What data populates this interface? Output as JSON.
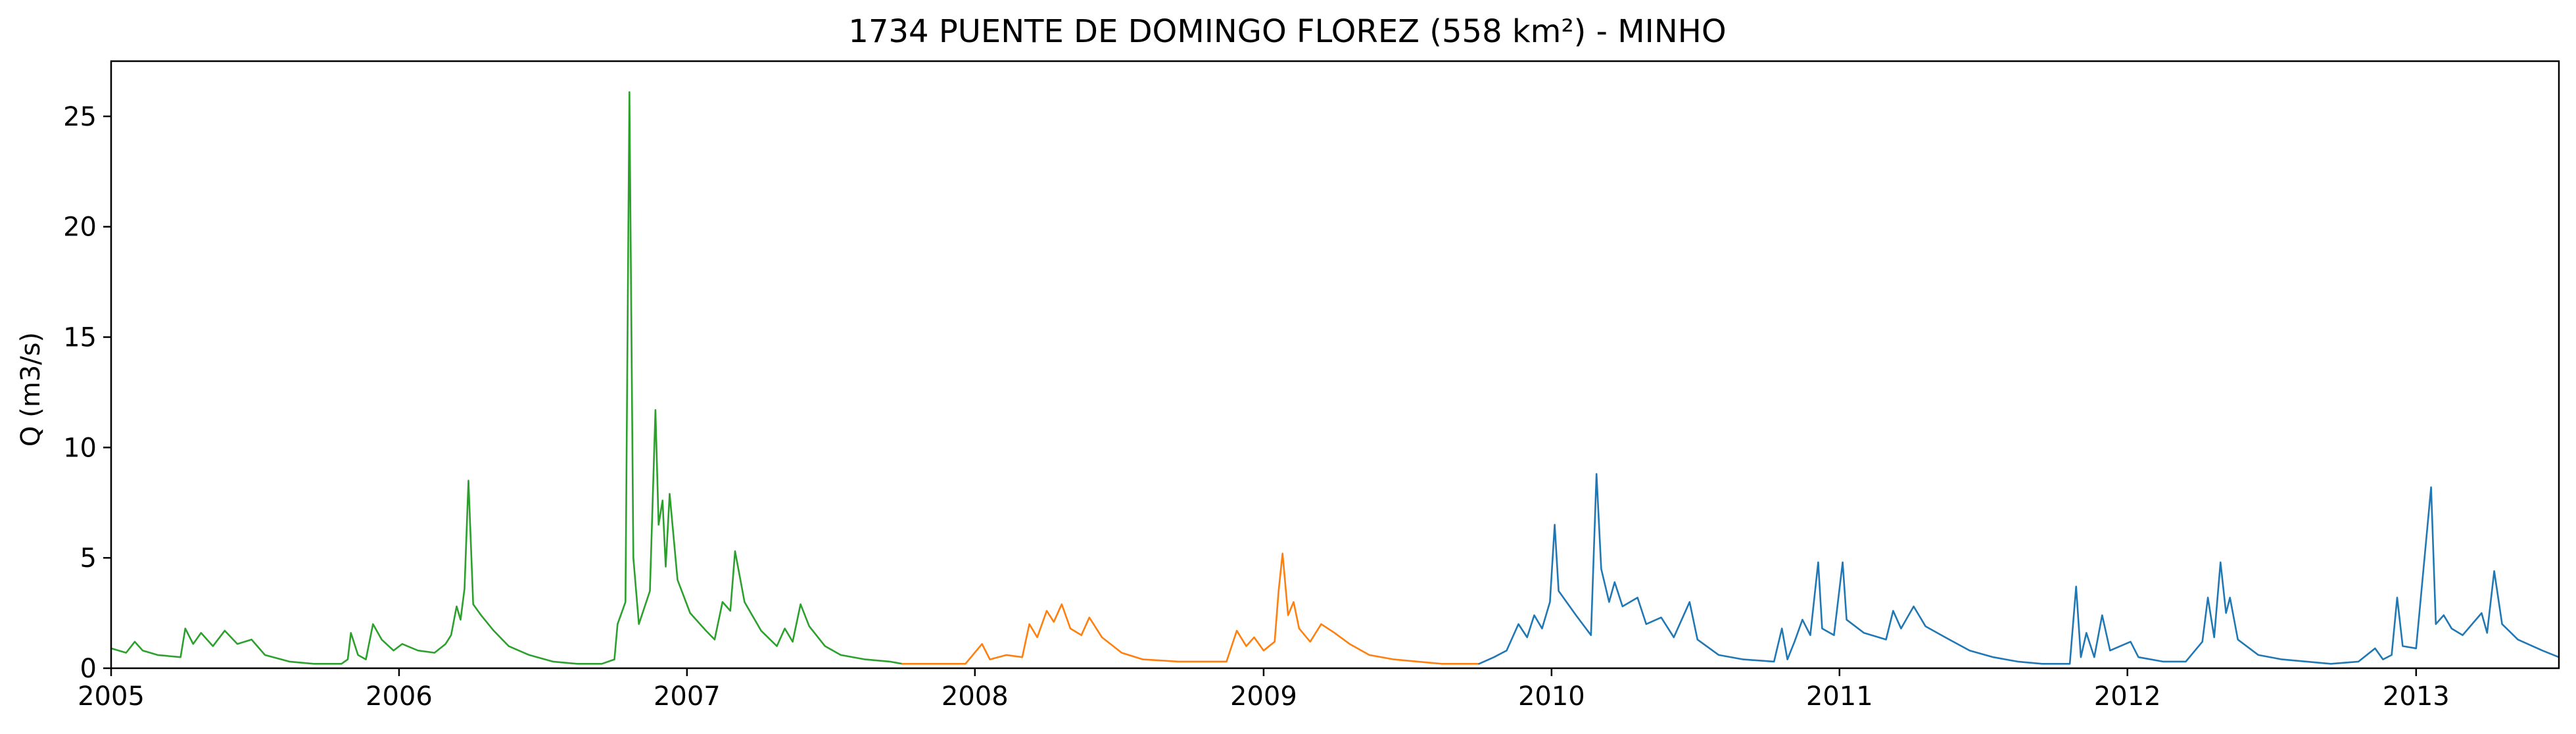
{
  "chart_data": {
    "type": "line",
    "title": "1734 PUENTE DE DOMINGO FLOREZ (558 km²) - MINHO",
    "xlabel": "",
    "ylabel": "Q (m3/s)",
    "xlim": [
      "2005-01-01",
      "2013-07-01"
    ],
    "ylim": [
      0,
      27.5
    ],
    "xticks": [
      "2005",
      "2006",
      "2007",
      "2008",
      "2009",
      "2010",
      "2011",
      "2012",
      "2013"
    ],
    "yticks": [
      0,
      5,
      10,
      15,
      20,
      25
    ],
    "grid": false,
    "legend": "none",
    "series": [
      {
        "color": "#2ca02c",
        "points": [
          [
            "2005-01-01",
            0.9
          ],
          [
            "2005-01-20",
            0.7
          ],
          [
            "2005-01-31",
            1.2
          ],
          [
            "2005-02-10",
            0.8
          ],
          [
            "2005-03-01",
            0.6
          ],
          [
            "2005-03-30",
            0.5
          ],
          [
            "2005-04-05",
            1.8
          ],
          [
            "2005-04-15",
            1.1
          ],
          [
            "2005-04-25",
            1.6
          ],
          [
            "2005-05-10",
            1.0
          ],
          [
            "2005-05-25",
            1.7
          ],
          [
            "2005-06-10",
            1.1
          ],
          [
            "2005-06-28",
            1.3
          ],
          [
            "2005-07-15",
            0.6
          ],
          [
            "2005-08-15",
            0.3
          ],
          [
            "2005-09-15",
            0.2
          ],
          [
            "2005-10-20",
            0.2
          ],
          [
            "2005-10-28",
            0.4
          ],
          [
            "2005-11-01",
            1.6
          ],
          [
            "2005-11-10",
            0.6
          ],
          [
            "2005-11-20",
            0.4
          ],
          [
            "2005-11-29",
            2.0
          ],
          [
            "2005-12-10",
            1.3
          ],
          [
            "2005-12-25",
            0.8
          ],
          [
            "2006-01-05",
            1.1
          ],
          [
            "2006-01-25",
            0.8
          ],
          [
            "2006-02-15",
            0.7
          ],
          [
            "2006-03-01",
            1.1
          ],
          [
            "2006-03-08",
            1.5
          ],
          [
            "2006-03-15",
            2.8
          ],
          [
            "2006-03-20",
            2.2
          ],
          [
            "2006-03-25",
            3.6
          ],
          [
            "2006-03-30",
            8.5
          ],
          [
            "2006-04-05",
            2.9
          ],
          [
            "2006-04-15",
            2.4
          ],
          [
            "2006-05-01",
            1.7
          ],
          [
            "2006-05-20",
            1.0
          ],
          [
            "2006-06-15",
            0.6
          ],
          [
            "2006-07-15",
            0.3
          ],
          [
            "2006-08-15",
            0.2
          ],
          [
            "2006-09-15",
            0.2
          ],
          [
            "2006-10-01",
            0.4
          ],
          [
            "2006-10-05",
            2.0
          ],
          [
            "2006-10-15",
            3.0
          ],
          [
            "2006-10-20",
            26.1
          ],
          [
            "2006-10-25",
            5.0
          ],
          [
            "2006-11-01",
            2.0
          ],
          [
            "2006-11-15",
            3.5
          ],
          [
            "2006-11-22",
            11.7
          ],
          [
            "2006-11-26",
            6.5
          ],
          [
            "2006-12-01",
            7.6
          ],
          [
            "2006-12-05",
            4.6
          ],
          [
            "2006-12-10",
            7.9
          ],
          [
            "2006-12-20",
            4.0
          ],
          [
            "2007-01-05",
            2.5
          ],
          [
            "2007-01-25",
            1.7
          ],
          [
            "2007-02-05",
            1.3
          ],
          [
            "2007-02-15",
            3.0
          ],
          [
            "2007-02-25",
            2.6
          ],
          [
            "2007-03-03",
            5.3
          ],
          [
            "2007-03-15",
            3.0
          ],
          [
            "2007-04-05",
            1.7
          ],
          [
            "2007-04-25",
            1.0
          ],
          [
            "2007-05-05",
            1.8
          ],
          [
            "2007-05-15",
            1.2
          ],
          [
            "2007-05-25",
            2.9
          ],
          [
            "2007-06-05",
            1.9
          ],
          [
            "2007-06-25",
            1.0
          ],
          [
            "2007-07-15",
            0.6
          ],
          [
            "2007-08-15",
            0.4
          ],
          [
            "2007-09-15",
            0.3
          ],
          [
            "2007-10-01",
            0.2
          ]
        ]
      },
      {
        "color": "#ff7f0e",
        "points": [
          [
            "2007-10-01",
            0.2
          ],
          [
            "2007-11-15",
            0.2
          ],
          [
            "2007-12-20",
            0.2
          ],
          [
            "2008-01-10",
            1.1
          ],
          [
            "2008-01-20",
            0.4
          ],
          [
            "2008-02-10",
            0.6
          ],
          [
            "2008-03-01",
            0.5
          ],
          [
            "2008-03-10",
            2.0
          ],
          [
            "2008-03-20",
            1.4
          ],
          [
            "2008-04-01",
            2.6
          ],
          [
            "2008-04-10",
            2.1
          ],
          [
            "2008-04-20",
            2.9
          ],
          [
            "2008-05-01",
            1.8
          ],
          [
            "2008-05-15",
            1.5
          ],
          [
            "2008-05-25",
            2.3
          ],
          [
            "2008-06-10",
            1.4
          ],
          [
            "2008-07-05",
            0.7
          ],
          [
            "2008-08-01",
            0.4
          ],
          [
            "2008-09-15",
            0.3
          ],
          [
            "2008-10-20",
            0.3
          ],
          [
            "2008-11-15",
            0.3
          ],
          [
            "2008-11-28",
            1.7
          ],
          [
            "2008-12-10",
            1.0
          ],
          [
            "2008-12-20",
            1.4
          ],
          [
            "2009-01-01",
            0.8
          ],
          [
            "2009-01-15",
            1.2
          ],
          [
            "2009-01-20",
            3.5
          ],
          [
            "2009-01-25",
            5.2
          ],
          [
            "2009-02-01",
            2.4
          ],
          [
            "2009-02-08",
            3.0
          ],
          [
            "2009-02-15",
            1.8
          ],
          [
            "2009-03-01",
            1.2
          ],
          [
            "2009-03-15",
            2.0
          ],
          [
            "2009-04-01",
            1.6
          ],
          [
            "2009-04-20",
            1.1
          ],
          [
            "2009-05-15",
            0.6
          ],
          [
            "2009-06-15",
            0.4
          ],
          [
            "2009-07-15",
            0.3
          ],
          [
            "2009-08-15",
            0.2
          ],
          [
            "2009-10-01",
            0.2
          ]
        ]
      },
      {
        "color": "#1f77b4",
        "points": [
          [
            "2009-10-01",
            0.2
          ],
          [
            "2009-10-20",
            0.5
          ],
          [
            "2009-11-05",
            0.8
          ],
          [
            "2009-11-20",
            2.0
          ],
          [
            "2009-12-01",
            1.4
          ],
          [
            "2009-12-10",
            2.4
          ],
          [
            "2009-12-20",
            1.8
          ],
          [
            "2009-12-30",
            3.0
          ],
          [
            "2010-01-05",
            6.5
          ],
          [
            "2010-01-10",
            3.5
          ],
          [
            "2010-01-20",
            3.0
          ],
          [
            "2010-02-01",
            2.4
          ],
          [
            "2010-02-20",
            1.5
          ],
          [
            "2010-02-27",
            8.8
          ],
          [
            "2010-03-05",
            4.5
          ],
          [
            "2010-03-15",
            3.0
          ],
          [
            "2010-03-22",
            3.9
          ],
          [
            "2010-04-01",
            2.8
          ],
          [
            "2010-04-20",
            3.2
          ],
          [
            "2010-05-01",
            2.0
          ],
          [
            "2010-05-20",
            2.3
          ],
          [
            "2010-06-05",
            1.4
          ],
          [
            "2010-06-25",
            3.0
          ],
          [
            "2010-07-05",
            1.3
          ],
          [
            "2010-08-01",
            0.6
          ],
          [
            "2010-09-01",
            0.4
          ],
          [
            "2010-10-10",
            0.3
          ],
          [
            "2010-10-20",
            1.8
          ],
          [
            "2010-10-27",
            0.4
          ],
          [
            "2010-11-05",
            1.2
          ],
          [
            "2010-11-15",
            2.2
          ],
          [
            "2010-11-25",
            1.5
          ],
          [
            "2010-12-05",
            4.8
          ],
          [
            "2010-12-10",
            1.8
          ],
          [
            "2010-12-25",
            1.5
          ],
          [
            "2011-01-05",
            4.8
          ],
          [
            "2011-01-10",
            2.2
          ],
          [
            "2011-02-01",
            1.6
          ],
          [
            "2011-03-01",
            1.3
          ],
          [
            "2011-03-10",
            2.6
          ],
          [
            "2011-03-20",
            1.8
          ],
          [
            "2011-04-05",
            2.8
          ],
          [
            "2011-04-20",
            1.9
          ],
          [
            "2011-05-15",
            1.4
          ],
          [
            "2011-06-15",
            0.8
          ],
          [
            "2011-07-15",
            0.5
          ],
          [
            "2011-08-15",
            0.3
          ],
          [
            "2011-09-15",
            0.2
          ],
          [
            "2011-10-20",
            0.2
          ],
          [
            "2011-10-28",
            3.7
          ],
          [
            "2011-11-03",
            0.5
          ],
          [
            "2011-11-10",
            1.6
          ],
          [
            "2011-11-20",
            0.5
          ],
          [
            "2011-11-30",
            2.4
          ],
          [
            "2011-12-10",
            0.8
          ],
          [
            "2012-01-05",
            1.2
          ],
          [
            "2012-01-15",
            0.5
          ],
          [
            "2012-02-15",
            0.3
          ],
          [
            "2012-03-15",
            0.3
          ],
          [
            "2012-04-05",
            1.2
          ],
          [
            "2012-04-12",
            3.2
          ],
          [
            "2012-04-20",
            1.4
          ],
          [
            "2012-04-28",
            4.8
          ],
          [
            "2012-05-05",
            2.5
          ],
          [
            "2012-05-10",
            3.2
          ],
          [
            "2012-05-20",
            1.3
          ],
          [
            "2012-06-15",
            0.6
          ],
          [
            "2012-07-15",
            0.4
          ],
          [
            "2012-08-15",
            0.3
          ],
          [
            "2012-09-15",
            0.2
          ],
          [
            "2012-10-20",
            0.3
          ],
          [
            "2012-11-10",
            0.9
          ],
          [
            "2012-11-20",
            0.4
          ],
          [
            "2012-12-01",
            0.6
          ],
          [
            "2012-12-08",
            3.2
          ],
          [
            "2012-12-15",
            1.0
          ],
          [
            "2013-01-01",
            0.9
          ],
          [
            "2013-01-20",
            8.2
          ],
          [
            "2013-01-26",
            2.0
          ],
          [
            "2013-02-05",
            2.4
          ],
          [
            "2013-02-15",
            1.8
          ],
          [
            "2013-03-01",
            1.5
          ],
          [
            "2013-03-25",
            2.5
          ],
          [
            "2013-04-01",
            1.6
          ],
          [
            "2013-04-10",
            4.4
          ],
          [
            "2013-04-20",
            2.0
          ],
          [
            "2013-05-10",
            1.3
          ],
          [
            "2013-06-10",
            0.8
          ],
          [
            "2013-07-01",
            0.5
          ]
        ]
      }
    ]
  }
}
